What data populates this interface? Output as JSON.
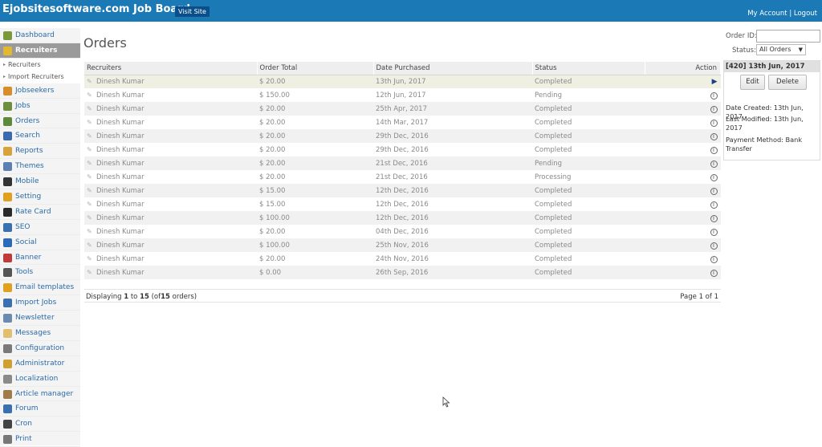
{
  "header": {
    "title": "Ejobsitesoftware.com Job Board",
    "visit_site": "Visit Site",
    "my_account": "My Account",
    "separator": "|",
    "logout": "Logout"
  },
  "sidebar": {
    "items": [
      {
        "label": "Dashboard",
        "icon": "home-icon",
        "color": "#7a9a3a"
      },
      {
        "label": "Recruiters",
        "icon": "recruiter-icon",
        "color": "#e2b833"
      },
      {
        "label": "Jobseekers",
        "icon": "jobseeker-icon",
        "color": "#d98c2a"
      },
      {
        "label": "Jobs",
        "icon": "jobs-icon",
        "color": "#6b8f3d"
      },
      {
        "label": "Orders",
        "icon": "orders-icon",
        "color": "#5b8a3a"
      },
      {
        "label": "Search",
        "icon": "search-icon",
        "color": "#3a6ab0"
      },
      {
        "label": "Reports",
        "icon": "reports-icon",
        "color": "#d9a13a"
      },
      {
        "label": "Themes",
        "icon": "themes-icon",
        "color": "#5a7fb0"
      },
      {
        "label": "Mobile",
        "icon": "mobile-icon",
        "color": "#333333"
      },
      {
        "label": "Setting",
        "icon": "gear-icon",
        "color": "#e0a020"
      },
      {
        "label": "Rate Card",
        "icon": "dollar-icon",
        "color": "#2a2a2a"
      },
      {
        "label": "SEO",
        "icon": "seo-icon",
        "color": "#3a70b0"
      },
      {
        "label": "Social",
        "icon": "social-icon",
        "color": "#2a6ab8"
      },
      {
        "label": "Banner",
        "icon": "banner-icon",
        "color": "#c03a3a"
      },
      {
        "label": "Tools",
        "icon": "tools-icon",
        "color": "#555555"
      },
      {
        "label": "Email templates",
        "icon": "email-icon",
        "color": "#e0a020"
      },
      {
        "label": "Import Jobs",
        "icon": "import-icon",
        "color": "#3a70b0"
      },
      {
        "label": "Newsletter",
        "icon": "newsletter-icon",
        "color": "#6a8ab0"
      },
      {
        "label": "Messages",
        "icon": "messages-icon",
        "color": "#e0c070"
      },
      {
        "label": "Configuration",
        "icon": "configuration-icon",
        "color": "#7a7a7a"
      },
      {
        "label": "Administrator",
        "icon": "lock-icon",
        "color": "#d0a030"
      },
      {
        "label": "Localization",
        "icon": "globe-icon",
        "color": "#8a8a8a"
      },
      {
        "label": "Article manager",
        "icon": "article-icon",
        "color": "#a07a4a"
      },
      {
        "label": "Forum",
        "icon": "forum-icon",
        "color": "#3a70b0"
      },
      {
        "label": "Cron",
        "icon": "clock-icon",
        "color": "#444444"
      },
      {
        "label": "Print",
        "icon": "print-icon",
        "color": "#777777"
      }
    ],
    "sub_items": [
      "Recruiters",
      "Import Recruiters"
    ]
  },
  "main": {
    "title": "Orders",
    "columns": [
      "Recruiters",
      "Order Total",
      "Date Purchased",
      "Status",
      "Action"
    ],
    "rows": [
      {
        "recruiter": "Dinesh Kumar",
        "total": "$ 20.00",
        "date": "13th Jun, 2017",
        "status": "Completed",
        "action": "play-icon"
      },
      {
        "recruiter": "Dinesh Kumar",
        "total": "$ 150.00",
        "date": "12th Jun, 2017",
        "status": "Pending",
        "action": "info-icon"
      },
      {
        "recruiter": "Dinesh Kumar",
        "total": "$ 20.00",
        "date": "25th Apr, 2017",
        "status": "Completed",
        "action": "info-icon"
      },
      {
        "recruiter": "Dinesh Kumar",
        "total": "$ 20.00",
        "date": "14th Mar, 2017",
        "status": "Completed",
        "action": "info-icon"
      },
      {
        "recruiter": "Dinesh Kumar",
        "total": "$ 20.00",
        "date": "29th Dec, 2016",
        "status": "Completed",
        "action": "info-icon"
      },
      {
        "recruiter": "Dinesh Kumar",
        "total": "$ 20.00",
        "date": "29th Dec, 2016",
        "status": "Completed",
        "action": "info-icon"
      },
      {
        "recruiter": "Dinesh Kumar",
        "total": "$ 20.00",
        "date": "21st Dec, 2016",
        "status": "Pending",
        "action": "info-icon"
      },
      {
        "recruiter": "Dinesh Kumar",
        "total": "$ 20.00",
        "date": "21st Dec, 2016",
        "status": "Processing",
        "action": "info-icon"
      },
      {
        "recruiter": "Dinesh Kumar",
        "total": "$ 15.00",
        "date": "12th Dec, 2016",
        "status": "Completed",
        "action": "info-icon"
      },
      {
        "recruiter": "Dinesh Kumar",
        "total": "$ 15.00",
        "date": "12th Dec, 2016",
        "status": "Completed",
        "action": "info-icon"
      },
      {
        "recruiter": "Dinesh Kumar",
        "total": "$ 100.00",
        "date": "12th Dec, 2016",
        "status": "Completed",
        "action": "info-icon"
      },
      {
        "recruiter": "Dinesh Kumar",
        "total": "$ 20.00",
        "date": "04th Dec, 2016",
        "status": "Completed",
        "action": "info-icon"
      },
      {
        "recruiter": "Dinesh Kumar",
        "total": "$ 100.00",
        "date": "25th Nov, 2016",
        "status": "Completed",
        "action": "info-icon"
      },
      {
        "recruiter": "Dinesh Kumar",
        "total": "$ 20.00",
        "date": "24th Nov, 2016",
        "status": "Completed",
        "action": "info-icon"
      },
      {
        "recruiter": "Dinesh Kumar",
        "total": "$ 0.00",
        "date": "26th Sep, 2016",
        "status": "Completed",
        "action": "info-icon"
      }
    ],
    "footer": {
      "displaying_prefix": "Displaying",
      "from": "1",
      "to_word": "to",
      "to": "15",
      "of_prefix": "(of",
      "total": "15",
      "of_suffix": "orders)",
      "pager": "Page 1 of 1"
    }
  },
  "filters": {
    "order_id_label": "Order ID:",
    "order_id_value": "",
    "status_label": "Status:",
    "status_value": "All Orders"
  },
  "detail": {
    "heading": "[420]  13th Jun, 2017",
    "edit_label": "Edit",
    "delete_label": "Delete",
    "date_created": "Date Created: 13th Jun, 2017",
    "last_modified": "Last Modified: 13th Jun, 2017",
    "payment_method": "Payment Method: Bank Transfer"
  }
}
